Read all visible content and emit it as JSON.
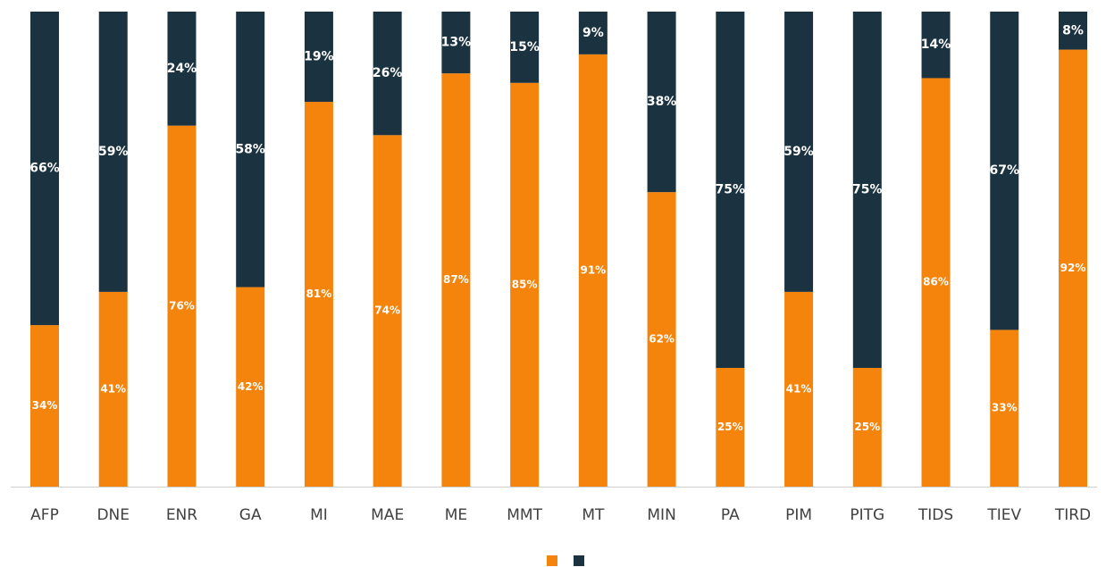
{
  "chart_data": {
    "type": "stacked_bar",
    "categories": [
      "AFP",
      "DNE",
      "ENR",
      "GA",
      "MI",
      "MAE",
      "ME",
      "MMT",
      "MT",
      "MIN",
      "PA",
      "PIM",
      "PITG",
      "TIDS",
      "TIEV",
      "TIRD"
    ],
    "ylim": [
      0,
      100
    ],
    "series": [
      {
        "color": "#f5840c",
        "values": [
          34,
          41,
          76,
          42,
          81,
          74,
          87,
          85,
          91,
          62,
          25,
          41,
          25,
          86,
          33,
          92
        ],
        "value_labels": [
          "34%",
          "41%",
          "76%",
          "42%",
          "81%",
          "74%",
          "87%",
          "85%",
          "91%",
          "62%",
          "25%",
          "41%",
          "25%",
          "86%",
          "33%",
          "92%"
        ]
      },
      {
        "color": "#1b3340",
        "values": [
          66,
          59,
          24,
          58,
          19,
          26,
          13,
          15,
          9,
          38,
          75,
          59,
          75,
          14,
          67,
          8
        ],
        "value_labels": [
          "66%",
          "59%",
          "24%",
          "58%",
          "19%",
          "26%",
          "13%",
          "15%",
          "9%",
          "38%",
          "75%",
          "59%",
          "75%",
          "14%",
          "67%",
          "8%"
        ]
      }
    ]
  }
}
